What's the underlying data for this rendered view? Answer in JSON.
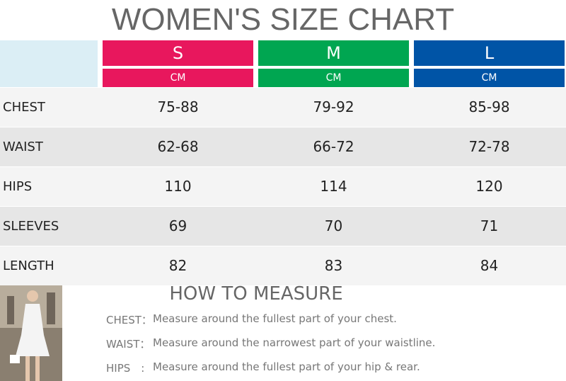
{
  "header": {
    "title": "WOMEN'S SIZE CHART"
  },
  "table": {
    "columns": [
      {
        "size": "S",
        "unit": "CM",
        "color": "#e8175d"
      },
      {
        "size": "M",
        "unit": "CM",
        "color": "#00a651"
      },
      {
        "size": "L",
        "unit": "CM",
        "color": "#0054a6"
      }
    ],
    "rows": [
      [
        "CHEST",
        "75-88",
        "79-92",
        "85-98"
      ],
      [
        "WAIST",
        "62-68",
        "66-72",
        "72-78"
      ],
      [
        "HIPS",
        "110",
        "114",
        "120"
      ],
      [
        "SLEEVES",
        "69",
        "70",
        "71"
      ],
      [
        "LENGTH",
        "82",
        "83",
        "84"
      ]
    ]
  },
  "measure": {
    "title": "HOW TO MEASURE",
    "items": [
      {
        "label": "CHEST：",
        "text": "Measure around the fullest part of your chest."
      },
      {
        "label": "WAIST：",
        "text": "Measure around the narrowest part of your waistline."
      },
      {
        "label": "HIPS　:",
        "text": "Measure around the fullest part of your hip & rear."
      }
    ]
  }
}
